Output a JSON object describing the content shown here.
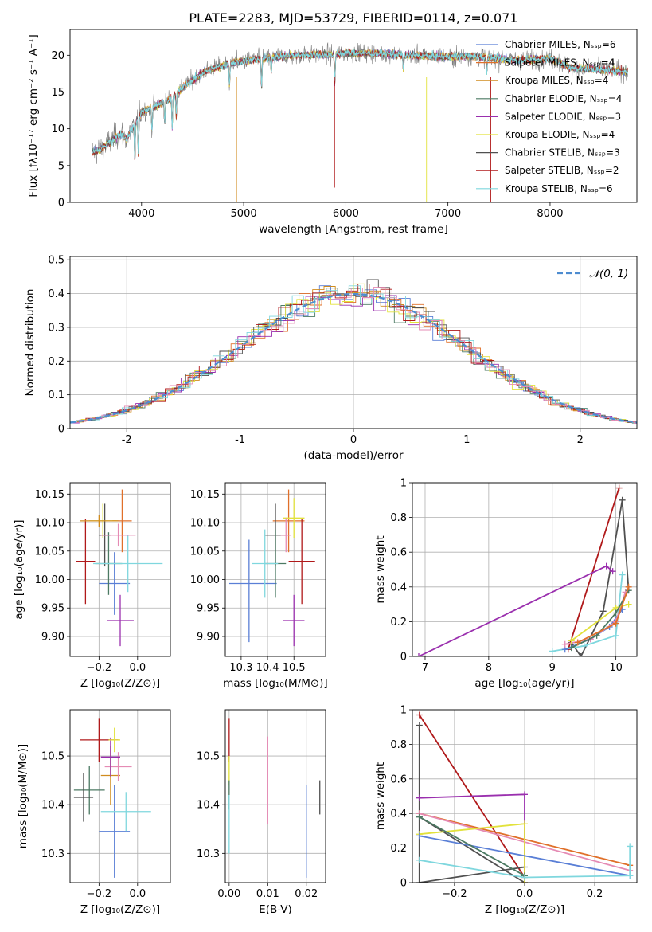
{
  "chart_data": [
    {
      "type": "line",
      "title": "PLATE=2283, MJD=53729, FIBERID=0114, z=0.071",
      "xlabel": "wavelength [Angstrom, rest frame]",
      "ylabel": "Flux [fλ10⁻¹⁷ erg cm⁻² s⁻¹ A⁻¹]",
      "xlim": [
        3300,
        8850
      ],
      "ylim": [
        0,
        23.5
      ],
      "xticks": [
        4000,
        5000,
        6000,
        7000,
        8000
      ],
      "yticks": [
        0,
        5,
        10,
        15,
        20
      ],
      "legend_position": "right",
      "continuum": {
        "x": [
          3520,
          3600,
          3700,
          3800,
          3850,
          3950,
          4000,
          4100,
          4200,
          4300,
          4400,
          4500,
          4600,
          4700,
          4800,
          4900,
          5000,
          5200,
          5400,
          5600,
          5800,
          6000,
          6200,
          6400,
          6600,
          6800,
          7000,
          7200,
          7400,
          7600,
          7800,
          8000,
          8200,
          8400,
          8600,
          8800
        ],
        "y": [
          6.8,
          7.2,
          8.3,
          9.4,
          8.6,
          11.0,
          12.3,
          12.8,
          13.6,
          14.2,
          15.6,
          16.6,
          17.6,
          18.2,
          18.6,
          19.0,
          19.2,
          19.6,
          19.9,
          20.1,
          20.0,
          20.3,
          20.3,
          20.2,
          20.0,
          19.9,
          19.8,
          19.9,
          19.7,
          19.4,
          19.4,
          19.6,
          18.3,
          18.1,
          17.9,
          17.8
        ]
      },
      "absorption_features": [
        {
          "x": 3934,
          "depth": 5
        },
        {
          "x": 3969,
          "depth": 5
        },
        {
          "x": 4102,
          "depth": 3
        },
        {
          "x": 4227,
          "depth": 3
        },
        {
          "x": 4300,
          "depth": 4
        },
        {
          "x": 4340,
          "depth": 3
        },
        {
          "x": 4861,
          "depth": 3
        },
        {
          "x": 5175,
          "depth": 4
        },
        {
          "x": 5270,
          "depth": 2
        },
        {
          "x": 5892,
          "depth": 4
        },
        {
          "x": 6563,
          "depth": 2
        },
        {
          "x": 7380,
          "depth": 2
        }
      ],
      "series": [
        {
          "name": "Chabrier MILES, Nₛₛₚ=6",
          "color": "#5a7fd6"
        },
        {
          "name": "Salpeter MILES, Nₛₛₚ=4",
          "color": "#e0702a"
        },
        {
          "name": "Kroupa MILES, Nₛₛₚ=4",
          "color": "#d08c1e"
        },
        {
          "name": "Chabrier ELODIE, Nₛₛₚ=4",
          "color": "#4c7a63"
        },
        {
          "name": "Salpeter ELODIE, Nₛₛₚ=3",
          "color": "#9a2fae"
        },
        {
          "name": "Kroupa ELODIE, Nₛₛₚ=4",
          "color": "#e2e23c"
        },
        {
          "name": "Chabrier STELIB, Nₛₛₚ=3",
          "color": "#505050"
        },
        {
          "name": "Salpeter STELIB, Nₛₛₚ=2",
          "color": "#b0191a"
        },
        {
          "name": "Kroupa STELIB, Nₛₛₚ=6",
          "color": "#7fd7de"
        }
      ],
      "data_color": "#808080"
    },
    {
      "type": "histogram",
      "xlabel": "(data-model)/error",
      "ylabel": "Normed distribution",
      "xlim": [
        -2.5,
        2.5
      ],
      "ylim": [
        0,
        0.51
      ],
      "xticks": [
        -2,
        -1,
        0,
        1,
        2
      ],
      "yticks": [
        0.0,
        0.1,
        0.2,
        0.3,
        0.4,
        0.5
      ],
      "legend": "𝒩(0, 1)",
      "legend_position": "top-right",
      "gaussian": {
        "mean": 0,
        "sigma": 1,
        "color": "#4d8cd0"
      },
      "bin_width": 0.1,
      "series_colors": [
        "#5a7fd6",
        "#e0702a",
        "#d08c1e",
        "#4c7a63",
        "#9a2fae",
        "#e2e23c",
        "#505050",
        "#b0191a",
        "#7fd7de",
        "#e58bb4"
      ]
    },
    {
      "type": "errorbar",
      "xlabel": "Z [log₁₀(Z/Z⊙)]",
      "ylabel": "age  [log₁₀(age/yr)]",
      "xlim": [
        -0.35,
        0.17
      ],
      "ylim": [
        9.865,
        10.17
      ],
      "xticks": [
        -0.2,
        0.0
      ],
      "xticklabels": [
        "−0.2",
        "0.0"
      ],
      "yticks": [
        9.9,
        9.95,
        10.0,
        10.05,
        10.1,
        10.15
      ],
      "yticklabels": [
        "9.90",
        "9.95",
        "10.00",
        "10.05",
        "10.10",
        "10.15"
      ],
      "points": [
        {
          "x": -0.12,
          "y": 9.993,
          "xerr": 0.08,
          "yerr": 0.055,
          "color": "#5a7fd6"
        },
        {
          "x": -0.08,
          "y": 10.103,
          "xerr": 0.05,
          "yerr": 0.055,
          "color": "#e0702a"
        },
        {
          "x": -0.18,
          "y": 10.103,
          "xerr": 0.07,
          "yerr": 0.03,
          "color": "#e2e23c"
        },
        {
          "x": -0.17,
          "y": 10.078,
          "xerr": 0.03,
          "yerr": 0.055,
          "color": "#505050"
        },
        {
          "x": -0.15,
          "y": 10.028,
          "xerr": 0.07,
          "yerr": 0.055,
          "color": "#4c7a63"
        },
        {
          "x": -0.05,
          "y": 10.028,
          "xerr": 0.18,
          "yerr": 0.05,
          "color": "#7fd7de"
        },
        {
          "x": -0.09,
          "y": 9.928,
          "xerr": 0.07,
          "yerr": 0.045,
          "color": "#9a2fae"
        },
        {
          "x": -0.27,
          "y": 10.032,
          "xerr": 0.05,
          "yerr": 0.075,
          "color": "#b0191a"
        },
        {
          "x": -0.2,
          "y": 10.103,
          "xerr": 0.1,
          "yerr": 0.01,
          "color": "#d08c1e"
        },
        {
          "x": -0.1,
          "y": 10.078,
          "xerr": 0.09,
          "yerr": 0.02,
          "color": "#e58bb4"
        }
      ]
    },
    {
      "type": "errorbar",
      "xlabel": "mass [log₁₀(M/M⊙)]",
      "xlim": [
        10.24,
        10.62
      ],
      "ylim": [
        9.865,
        10.17
      ],
      "xticks": [
        10.3,
        10.4,
        10.5
      ],
      "xticklabels": [
        "10.3",
        "10.4",
        "10.5"
      ],
      "yticks": [
        9.9,
        9.95,
        10.0,
        10.05,
        10.1,
        10.15
      ],
      "yticklabels": [
        "9.90",
        "9.95",
        "10.00",
        "10.05",
        "10.10",
        "10.15"
      ],
      "points": [
        {
          "x": 10.345,
          "y": 9.993,
          "xerr": 0.09,
          "yerr": 0.0,
          "color": "#5a7fd6"
        },
        {
          "x": 10.33,
          "y": 9.98,
          "xerr": 0.0,
          "yerr": 0.09,
          "color": "#5a7fd6"
        },
        {
          "x": 10.48,
          "y": 10.103,
          "xerr": 0.06,
          "yerr": 0.055,
          "color": "#e0702a"
        },
        {
          "x": 10.5,
          "y": 10.108,
          "xerr": 0.04,
          "yerr": 0.035,
          "color": "#e2e23c"
        },
        {
          "x": 10.43,
          "y": 10.078,
          "xerr": 0.04,
          "yerr": 0.055,
          "color": "#505050"
        },
        {
          "x": 10.43,
          "y": 10.028,
          "xerr": 0.04,
          "yerr": 0.06,
          "color": "#4c7a63"
        },
        {
          "x": 10.39,
          "y": 10.028,
          "xerr": 0.05,
          "yerr": 0.06,
          "color": "#7fd7de"
        },
        {
          "x": 10.5,
          "y": 9.928,
          "xerr": 0.04,
          "yerr": 0.045,
          "color": "#9a2fae"
        },
        {
          "x": 10.53,
          "y": 10.032,
          "xerr": 0.05,
          "yerr": 0.075,
          "color": "#b0191a"
        },
        {
          "x": 10.47,
          "y": 10.078,
          "xerr": 0.02,
          "yerr": 0.03,
          "color": "#e58bb4"
        }
      ]
    },
    {
      "type": "line",
      "xlabel": "age  [log₁₀(age/yr)]",
      "ylabel": "mass weight",
      "xlim": [
        6.8,
        10.33
      ],
      "ylim": [
        0,
        1.0
      ],
      "xticks": [
        7,
        8,
        9,
        10
      ],
      "yticks": [
        0.0,
        0.2,
        0.4,
        0.6,
        0.8,
        1.0
      ],
      "series": [
        {
          "color": "#505050",
          "x": [
            9.3,
            9.45,
            9.8,
            10.1,
            10.2
          ],
          "y": [
            0.08,
            0.0,
            0.26,
            0.9,
            0.38
          ]
        },
        {
          "color": "#b0191a",
          "x": [
            9.25,
            10.05
          ],
          "y": [
            0.04,
            0.97
          ]
        },
        {
          "color": "#9a2fae",
          "x": [
            6.9,
            9.85,
            9.95
          ],
          "y": [
            0.0,
            0.52,
            0.49
          ]
        },
        {
          "color": "#7fd7de",
          "x": [
            9.0,
            9.5,
            10.0,
            10.1
          ],
          "y": [
            0.03,
            0.06,
            0.12,
            0.47
          ]
        },
        {
          "color": "#5a7fd6",
          "x": [
            9.2,
            9.6,
            9.9,
            10.1
          ],
          "y": [
            0.04,
            0.1,
            0.17,
            0.27
          ]
        },
        {
          "color": "#e58bb4",
          "x": [
            9.2,
            9.6,
            10.0,
            10.15
          ],
          "y": [
            0.07,
            0.1,
            0.2,
            0.37
          ]
        },
        {
          "color": "#e2e23c",
          "x": [
            9.3,
            10.0,
            10.2
          ],
          "y": [
            0.09,
            0.28,
            0.3
          ]
        },
        {
          "color": "#4c7a63",
          "x": [
            9.3,
            9.7,
            10.0,
            10.2
          ],
          "y": [
            0.05,
            0.12,
            0.25,
            0.38
          ]
        },
        {
          "color": "#e0702a",
          "x": [
            9.4,
            10.0,
            10.2
          ],
          "y": [
            0.08,
            0.19,
            0.4
          ]
        }
      ]
    },
    {
      "type": "errorbar",
      "xlabel": "Z [log₁₀(Z/Z⊙)]",
      "ylabel": "mass [log₁₀(M/M⊙)]",
      "xlim": [
        -0.35,
        0.17
      ],
      "ylim": [
        10.24,
        10.595
      ],
      "xticks": [
        -0.2,
        0.0
      ],
      "xticklabels": [
        "−0.2",
        "0.0"
      ],
      "yticks": [
        10.3,
        10.4,
        10.5
      ],
      "yticklabels": [
        "10.3",
        "10.4",
        "10.5"
      ],
      "points": [
        {
          "x": -0.12,
          "y": 10.345,
          "xerr": 0.08,
          "yerr": 0.095,
          "color": "#5a7fd6"
        },
        {
          "x": -0.14,
          "y": 10.46,
          "xerr": 0.05,
          "yerr": 0.06,
          "color": "#d08c1e"
        },
        {
          "x": -0.1,
          "y": 10.478,
          "xerr": 0.07,
          "yerr": 0.03,
          "color": "#e58bb4"
        },
        {
          "x": -0.25,
          "y": 10.43,
          "xerr": 0.08,
          "yerr": 0.05,
          "color": "#4c7a63"
        },
        {
          "x": -0.28,
          "y": 10.415,
          "xerr": 0.05,
          "yerr": 0.05,
          "color": "#505050"
        },
        {
          "x": -0.06,
          "y": 10.386,
          "xerr": 0.13,
          "yerr": 0.04,
          "color": "#7fd7de"
        },
        {
          "x": -0.14,
          "y": 10.498,
          "xerr": 0.05,
          "yerr": 0.04,
          "color": "#9a2fae"
        },
        {
          "x": -0.2,
          "y": 10.533,
          "xerr": 0.1,
          "yerr": 0.045,
          "color": "#b0191a"
        },
        {
          "x": -0.12,
          "y": 10.533,
          "xerr": 0.03,
          "yerr": 0.025,
          "color": "#e2e23c"
        }
      ]
    },
    {
      "type": "errorbar",
      "xlabel": "E(B-V)",
      "xlim": [
        -0.001,
        0.025
      ],
      "ylim": [
        10.24,
        10.595
      ],
      "xticks": [
        0.0,
        0.01,
        0.02
      ],
      "xticklabels": [
        "0.00",
        "0.01",
        "0.02"
      ],
      "yticks": [
        10.3,
        10.4,
        10.5
      ],
      "yticklabels": [
        "10.3",
        "10.4",
        "10.5"
      ],
      "points": [
        {
          "x": 0.0,
          "y": 10.533,
          "xerr": 0,
          "yerr": 0.045,
          "color": "#b0191a"
        },
        {
          "x": 0.0,
          "y": 10.47,
          "xerr": 0,
          "yerr": 0.03,
          "color": "#e2e23c"
        },
        {
          "x": 0.0,
          "y": 10.42,
          "xerr": 0,
          "yerr": 0.03,
          "color": "#4c7a63"
        },
        {
          "x": 0.0,
          "y": 10.36,
          "xerr": 0,
          "yerr": 0.06,
          "color": "#7fd7de"
        },
        {
          "x": 0.01,
          "y": 10.45,
          "xerr": 0,
          "yerr": 0.09,
          "color": "#e58bb4"
        },
        {
          "x": 0.02,
          "y": 10.345,
          "xerr": 0,
          "yerr": 0.095,
          "color": "#5a7fd6"
        },
        {
          "x": 0.0235,
          "y": 10.415,
          "xerr": 0,
          "yerr": 0.035,
          "color": "#505050"
        }
      ]
    },
    {
      "type": "line",
      "xlabel": "Z [log₁₀(Z/Z⊙)]",
      "ylabel": "mass weight",
      "xlim": [
        -0.32,
        0.32
      ],
      "ylim": [
        0,
        1.0
      ],
      "xticks": [
        -0.2,
        0.0,
        0.2
      ],
      "xticklabels": [
        "−0.2",
        "0.0",
        "0.2"
      ],
      "yticks": [
        0.0,
        0.2,
        0.4,
        0.6,
        0.8,
        1.0
      ],
      "series": [
        {
          "color": "#b0191a",
          "x": [
            -0.3,
            0.0
          ],
          "y": [
            0.97,
            0.03
          ]
        },
        {
          "color": "#505050",
          "x": [
            -0.3,
            -0.3,
            0.0,
            0.0,
            -0.3
          ],
          "y": [
            0.91,
            0.0,
            0.09,
            0.0,
            0.38
          ]
        },
        {
          "color": "#9a2fae",
          "x": [
            -0.3,
            0.0,
            0.0
          ],
          "y": [
            0.49,
            0.51,
            0.0
          ]
        },
        {
          "color": "#e0702a",
          "x": [
            -0.3,
            0.3
          ],
          "y": [
            0.4,
            0.1
          ]
        },
        {
          "color": "#e58bb4",
          "x": [
            -0.3,
            0.3
          ],
          "y": [
            0.4,
            0.07
          ]
        },
        {
          "color": "#e2e23c",
          "x": [
            -0.3,
            0.0,
            0.0
          ],
          "y": [
            0.28,
            0.34,
            0.0
          ]
        },
        {
          "color": "#5a7fd6",
          "x": [
            -0.3,
            0.3
          ],
          "y": [
            0.27,
            0.04
          ]
        },
        {
          "color": "#4c7a63",
          "x": [
            -0.3,
            0.0
          ],
          "y": [
            0.38,
            0.04
          ]
        },
        {
          "color": "#7fd7de",
          "x": [
            -0.3,
            0.0,
            0.3,
            0.3
          ],
          "y": [
            0.13,
            0.03,
            0.04,
            0.21
          ]
        }
      ]
    }
  ]
}
